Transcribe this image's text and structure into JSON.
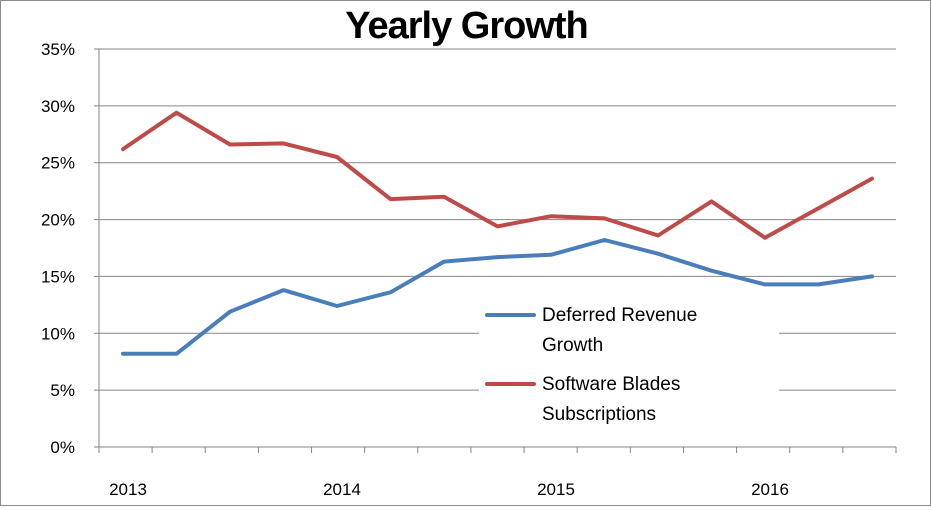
{
  "chart_data": {
    "type": "line",
    "title": "Yearly Growth",
    "xlabel": "",
    "ylabel": "",
    "x_ticks": [
      "2013",
      "2014",
      "2015",
      "2016"
    ],
    "y_ticks": [
      "0%",
      "5%",
      "10%",
      "15%",
      "20%",
      "25%",
      "30%",
      "35%"
    ],
    "ylim": [
      0,
      35
    ],
    "grid": true,
    "legend_position": "center-right",
    "points_per_series": 15,
    "series": [
      {
        "name": "Deferred Revenue Growth",
        "legend_lines": [
          "Deferred Revenue",
          "Growth"
        ],
        "color": "#4a7ebb",
        "values": [
          8.2,
          8.2,
          11.9,
          13.8,
          12.4,
          13.6,
          16.3,
          16.7,
          16.9,
          18.2,
          17.0,
          15.5,
          14.3,
          14.3,
          15.0
        ]
      },
      {
        "name": "Software Blades Subscriptions",
        "legend_lines": [
          "Software Blades",
          "Subscriptions"
        ],
        "color": "#be4b48",
        "values": [
          26.2,
          29.4,
          26.6,
          26.7,
          25.5,
          21.8,
          22.0,
          19.4,
          20.3,
          20.1,
          18.6,
          21.6,
          18.4,
          21.0,
          23.6
        ]
      }
    ]
  }
}
